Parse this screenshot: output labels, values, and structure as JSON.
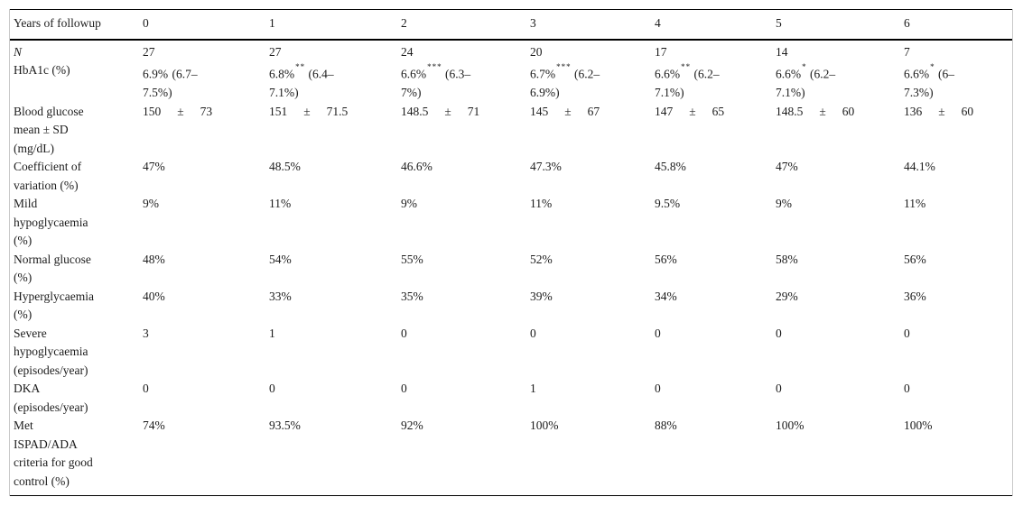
{
  "table": {
    "pm_symbol": "±",
    "header": {
      "label": "Years of followup",
      "cols": [
        "0",
        "1",
        "2",
        "3",
        "4",
        "5",
        "6"
      ]
    },
    "rows": [
      {
        "label": "N",
        "italic": true,
        "type": "text",
        "cells": [
          "27",
          "27",
          "24",
          "20",
          "17",
          "14",
          "7"
        ]
      },
      {
        "label": "HbA1c (%)",
        "type": "range",
        "cells": [
          {
            "v": "6.9%",
            "s": "",
            "r": " (6.7–\n7.5%)"
          },
          {
            "v": "6.8%",
            "s": "**",
            "r": " (6.4–\n7.1%)"
          },
          {
            "v": "6.6%",
            "s": "***",
            "r": " (6.3–\n7%)"
          },
          {
            "v": "6.7%",
            "s": "***",
            "r": " (6.2–\n6.9%)"
          },
          {
            "v": "6.6%",
            "s": "**",
            "r": " (6.2–\n7.1%)"
          },
          {
            "v": "6.6%",
            "s": "*",
            "r": " (6.2–\n7.1%)"
          },
          {
            "v": "6.6%",
            "s": "*",
            "r": " (6–\n7.3%)"
          }
        ]
      },
      {
        "label": "Blood glucose\nmean ± SD\n(mg/dL)",
        "type": "pm",
        "cells": [
          {
            "mean": "150",
            "sd": "73"
          },
          {
            "mean": "151",
            "sd": "71.5"
          },
          {
            "mean": "148.5",
            "sd": "71"
          },
          {
            "mean": "145",
            "sd": "67"
          },
          {
            "mean": "147",
            "sd": "65"
          },
          {
            "mean": "148.5",
            "sd": "60"
          },
          {
            "mean": "136",
            "sd": "60"
          }
        ]
      },
      {
        "label": "Coefficient of\nvariation (%)",
        "type": "text",
        "cells": [
          "47%",
          "48.5%",
          "46.6%",
          "47.3%",
          "45.8%",
          "47%",
          "44.1%"
        ]
      },
      {
        "label": "Mild\nhypoglycaemia\n(%)",
        "type": "text",
        "cells": [
          "9%",
          "11%",
          "9%",
          "11%",
          "9.5%",
          "9%",
          "11%"
        ]
      },
      {
        "label": "Normal glucose\n(%)",
        "type": "text",
        "cells": [
          "48%",
          "54%",
          "55%",
          "52%",
          "56%",
          "58%",
          "56%"
        ]
      },
      {
        "label": "Hyperglycaemia\n(%)",
        "type": "text",
        "cells": [
          "40%",
          "33%",
          "35%",
          "39%",
          "34%",
          "29%",
          "36%"
        ]
      },
      {
        "label": "Severe\nhypoglycaemia\n(episodes/year)",
        "type": "text",
        "cells": [
          "3",
          "1",
          "0",
          "0",
          "0",
          "0",
          "0"
        ]
      },
      {
        "label": "DKA\n(episodes/year)",
        "type": "text",
        "cells": [
          "0",
          "0",
          "0",
          "1",
          "0",
          "0",
          "0"
        ]
      },
      {
        "label": "Met\nISPAD/ADA\ncriteria for good\ncontrol (%)",
        "type": "text",
        "cells": [
          "74%",
          "93.5%",
          "92%",
          "100%",
          "88%",
          "100%",
          "100%"
        ]
      }
    ]
  }
}
